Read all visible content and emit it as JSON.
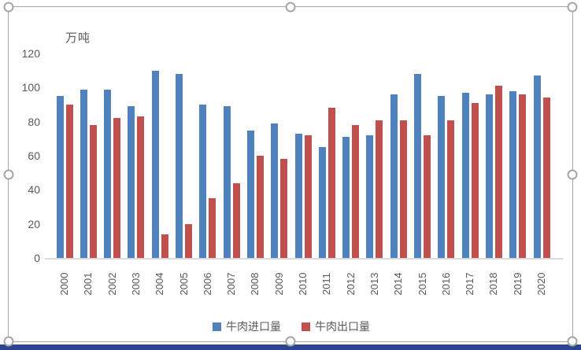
{
  "chart_data": {
    "type": "bar",
    "title": "",
    "ylabel": "万吨",
    "xlabel": "",
    "grid": false,
    "legend_position": "bottom",
    "ylim": [
      0,
      120
    ],
    "yticks": [
      0,
      20,
      40,
      60,
      80,
      100,
      120
    ],
    "categories": [
      "2000",
      "2001",
      "2002",
      "2003",
      "2004",
      "2005",
      "2006",
      "2007",
      "2008",
      "2009",
      "2010",
      "2011",
      "2012",
      "2013",
      "2014",
      "2015",
      "2016",
      "2017",
      "2018",
      "2019",
      "2020"
    ],
    "series": [
      {
        "name": "牛肉进口量",
        "color": "#4f81bd",
        "values": [
          95,
          99,
          99,
          89,
          110,
          108,
          90,
          89,
          75,
          79,
          73,
          65,
          71,
          72,
          96,
          108,
          95,
          97,
          96,
          98,
          107
        ]
      },
      {
        "name": "牛肉出口量",
        "color": "#c0504d",
        "values": [
          90,
          78,
          82,
          83,
          14,
          20,
          35,
          44,
          60,
          58,
          72,
          88,
          78,
          81,
          81,
          72,
          81,
          91,
          101,
          96,
          94
        ]
      }
    ]
  }
}
